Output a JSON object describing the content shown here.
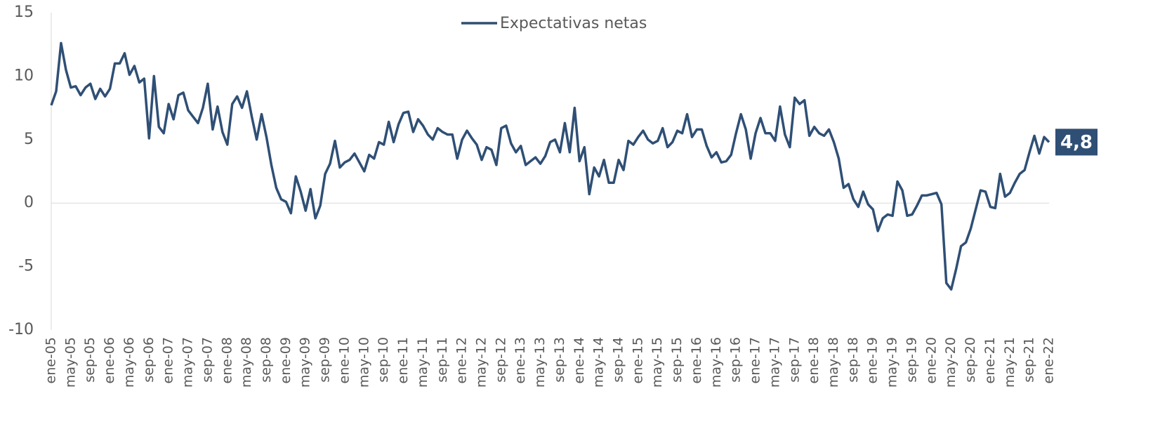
{
  "chart_data": {
    "type": "line",
    "categories": [
      "ene-05",
      null,
      null,
      null,
      "may-05",
      null,
      null,
      null,
      "sep-05",
      null,
      null,
      null,
      "ene-06",
      null,
      null,
      null,
      "may-06",
      null,
      null,
      null,
      "sep-06",
      null,
      null,
      null,
      "ene-07",
      null,
      null,
      null,
      "may-07",
      null,
      null,
      null,
      "sep-07",
      null,
      null,
      null,
      "ene-08",
      null,
      null,
      null,
      "may-08",
      null,
      null,
      null,
      "sep-08",
      null,
      null,
      null,
      "ene-09",
      null,
      null,
      null,
      "may-09",
      null,
      null,
      null,
      "sep-09",
      null,
      null,
      null,
      "ene-10",
      null,
      null,
      null,
      "may-10",
      null,
      null,
      null,
      "sep-10",
      null,
      null,
      null,
      "ene-11",
      null,
      null,
      null,
      "may-11",
      null,
      null,
      null,
      "sep-11",
      null,
      null,
      null,
      "ene-12",
      null,
      null,
      null,
      "may-12",
      null,
      null,
      null,
      "sep-12",
      null,
      null,
      null,
      "ene-13",
      null,
      null,
      null,
      "may-13",
      null,
      null,
      null,
      "sep-13",
      null,
      null,
      null,
      "ene-14",
      null,
      null,
      null,
      "may-14",
      null,
      null,
      null,
      "sep-14",
      null,
      null,
      null,
      "ene-15",
      null,
      null,
      null,
      "may-15",
      null,
      null,
      null,
      "sep-15",
      null,
      null,
      null,
      "ene-16",
      null,
      null,
      null,
      "may-16",
      null,
      null,
      null,
      "sep-16",
      null,
      null,
      null,
      "ene-17",
      null,
      null,
      null,
      "may-17",
      null,
      null,
      null,
      "sep-17",
      null,
      null,
      null,
      "ene-18",
      null,
      null,
      null,
      "may-18",
      null,
      null,
      null,
      "sep-18",
      null,
      null,
      null,
      "ene-19",
      null,
      null,
      null,
      "may-19",
      null,
      null,
      null,
      "sep-19",
      null,
      null,
      null,
      "ene-20",
      null,
      null,
      null,
      "may-20",
      null,
      null,
      null,
      "sep-20",
      null,
      null,
      null,
      "ene-21",
      null,
      null,
      null,
      "may-21",
      null,
      null,
      null,
      "sep-21",
      null,
      null,
      null,
      "ene-22"
    ],
    "series": [
      {
        "name": "Expectativas netas",
        "color": "#2f4f75",
        "values": [
          7.7,
          8.8,
          12.6,
          10.5,
          9.1,
          9.2,
          8.5,
          9.1,
          9.4,
          8.2,
          9.0,
          8.4,
          9.0,
          11.0,
          11.0,
          11.8,
          10.1,
          10.8,
          9.5,
          9.8,
          5.1,
          10.0,
          6.0,
          5.5,
          7.8,
          6.6,
          8.5,
          8.7,
          7.3,
          6.8,
          6.3,
          7.5,
          9.4,
          5.8,
          7.6,
          5.6,
          4.6,
          7.8,
          8.4,
          7.5,
          8.8,
          6.8,
          5.0,
          7.0,
          5.2,
          3.0,
          1.2,
          0.3,
          0.1,
          -0.8,
          2.1,
          0.9,
          -0.6,
          1.1,
          -1.2,
          -0.2,
          2.3,
          3.1,
          4.9,
          2.8,
          3.2,
          3.4,
          3.9,
          3.2,
          2.5,
          3.8,
          3.5,
          4.8,
          4.6,
          6.4,
          4.8,
          6.2,
          7.1,
          7.2,
          5.6,
          6.6,
          6.1,
          5.4,
          5.0,
          5.9,
          5.6,
          5.4,
          5.4,
          3.5,
          5.0,
          5.7,
          5.1,
          4.6,
          3.4,
          4.4,
          4.2,
          3.0,
          5.9,
          6.1,
          4.7,
          4.0,
          4.5,
          3.0,
          3.3,
          3.6,
          3.1,
          3.7,
          4.8,
          5.0,
          4.0,
          6.3,
          4.0,
          7.5,
          3.3,
          4.4,
          0.7,
          2.8,
          2.1,
          3.4,
          1.6,
          1.6,
          3.4,
          2.6,
          4.9,
          4.6,
          5.2,
          5.7,
          5.0,
          4.7,
          4.9,
          5.9,
          4.4,
          4.8,
          5.7,
          5.5,
          7.0,
          5.2,
          5.8,
          5.8,
          4.5,
          3.6,
          4.0,
          3.2,
          3.3,
          3.8,
          5.5,
          7.0,
          5.8,
          3.5,
          5.5,
          6.7,
          5.5,
          5.5,
          4.9,
          7.6,
          5.4,
          4.4,
          8.3,
          7.8,
          8.1,
          5.3,
          6.0,
          5.5,
          5.3,
          5.8,
          4.8,
          3.5,
          1.2,
          1.5,
          0.3,
          -0.3,
          0.9,
          -0.1,
          -0.5,
          -2.2,
          -1.2,
          -0.9,
          -1.0,
          1.7,
          1.0,
          -1.0,
          -0.9,
          -0.2,
          0.6,
          0.6,
          0.7,
          0.8,
          -0.1,
          -6.3,
          -6.8,
          -5.2,
          -3.4,
          -3.1,
          -2.0,
          -0.5,
          1.0,
          0.9,
          -0.3,
          -0.4,
          2.3,
          0.5,
          0.8,
          1.6,
          2.3,
          2.6,
          4.0,
          5.3,
          3.9,
          5.2,
          4.8
        ],
        "value_labels": [
          null,
          null,
          null,
          null,
          null,
          null,
          null,
          null,
          null,
          null,
          null,
          null,
          null,
          null,
          null,
          null,
          null,
          null,
          null,
          null,
          null,
          null,
          null,
          null,
          null,
          null,
          null,
          null,
          null,
          null,
          null,
          null,
          null,
          null,
          null,
          null,
          null,
          null,
          null,
          null,
          null,
          null,
          null,
          null,
          null,
          null,
          null,
          null,
          null,
          null,
          null,
          null,
          null,
          null,
          null,
          null,
          null,
          null,
          null,
          null,
          null,
          null,
          null,
          null,
          null,
          null,
          null,
          null,
          null,
          null,
          null,
          null,
          null,
          null,
          null,
          null,
          null,
          null,
          null,
          null,
          null,
          null,
          null,
          null,
          null,
          null,
          null,
          null,
          null,
          null,
          null,
          null,
          null,
          null,
          null,
          null,
          null,
          null,
          null,
          null,
          null,
          null,
          null,
          null,
          null,
          null,
          null,
          null,
          null,
          null,
          null,
          null,
          null,
          null,
          null,
          null,
          null,
          null,
          null,
          null,
          null,
          null,
          null,
          null,
          null,
          null,
          null,
          null,
          null,
          null,
          null,
          null,
          null,
          null,
          null,
          null,
          null,
          null,
          null,
          null,
          null,
          null,
          null,
          null,
          null,
          null,
          null,
          null,
          null,
          null,
          null,
          null,
          null,
          null,
          null,
          null,
          null,
          null,
          null,
          null,
          null,
          null,
          null,
          null,
          null,
          null,
          null,
          null,
          null,
          null,
          null,
          null,
          null,
          null,
          null,
          null,
          null,
          null,
          null,
          null,
          null,
          null,
          null,
          null,
          null,
          null,
          null,
          null,
          null,
          null,
          null,
          null,
          null,
          null,
          null,
          null,
          null,
          null,
          null,
          null,
          null,
          null,
          null,
          null,
          "4,8"
        ]
      }
    ],
    "ylim": [
      -10,
      15
    ],
    "yticks": [
      -10,
      -5,
      0,
      5,
      10,
      15
    ],
    "legend": "top"
  }
}
